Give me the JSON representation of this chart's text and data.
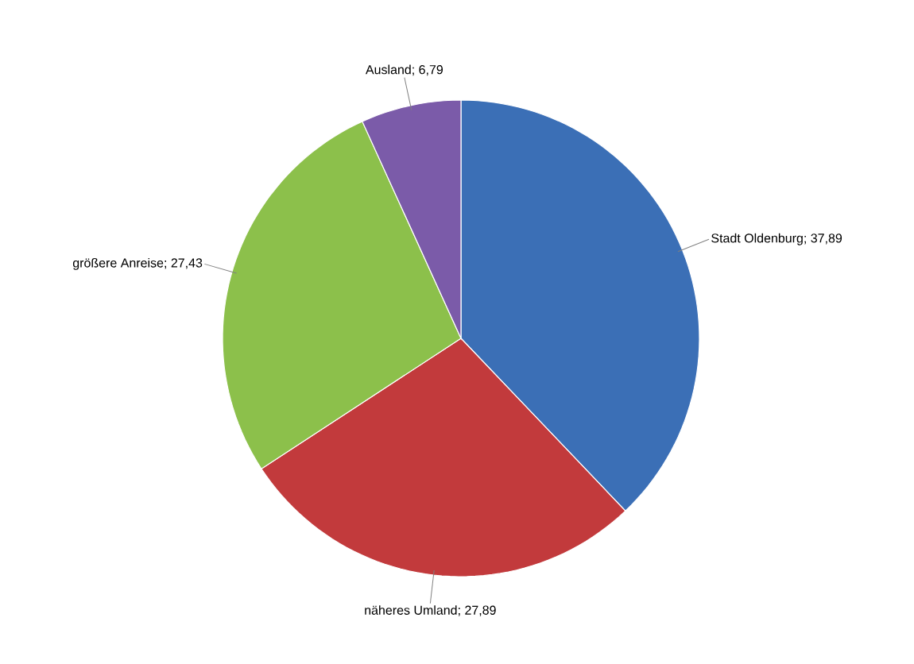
{
  "chart_data": {
    "type": "pie",
    "categories": [
      "Stadt Oldenburg",
      "näheres Umland",
      "größere Anreise",
      "Ausland"
    ],
    "values": [
      37.89,
      27.89,
      27.43,
      6.79
    ],
    "colors": [
      "#3b6fb6",
      "#c23a3c",
      "#8cc04b",
      "#7b5ba9"
    ],
    "value_labels": [
      "; 37,89",
      "; 27,89",
      "; 27,43",
      "; 6,79"
    ]
  }
}
